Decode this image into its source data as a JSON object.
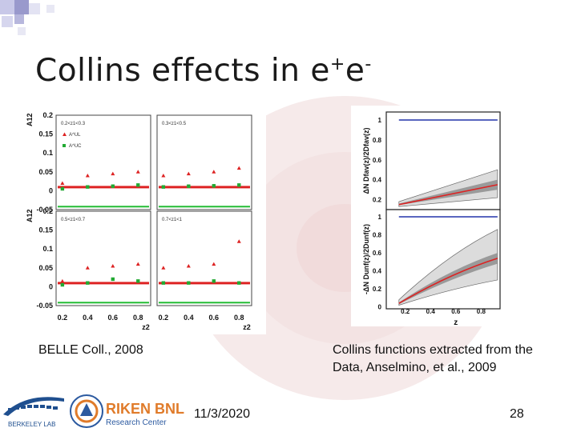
{
  "slide": {
    "title": "Collins effects in e",
    "title_sup1": "+",
    "title_e2": "e",
    "title_sup2": "-",
    "caption_left": "BELLE Coll., 2008",
    "caption_right_line1": "Collins functions extracted from the",
    "caption_right_line2": "Data, Anselmino, et al., 2009",
    "date": "11/3/2020",
    "page": "28",
    "logo_left_text": "BERKELEY LAB",
    "logo_right_text1": "RIKEN BNL",
    "logo_right_text2": "Research Center"
  },
  "chart_data": [
    {
      "type": "scatter",
      "source": "BELLE",
      "ylabel": "A12",
      "xlabel": "z2",
      "ylim": [
        -0.05,
        0.2
      ],
      "y_ticks": [
        "0.2",
        "0.15",
        "0.1",
        "0.05",
        "0",
        "-0.05"
      ],
      "x_ticks": [
        "0.2",
        "0.4",
        "0.6",
        "0.8"
      ],
      "legend": [
        "A^UL",
        "A^UC"
      ],
      "panels": [
        {
          "label": "0.2<z1<0.3",
          "series": [
            {
              "name": "A^UL",
              "x": [
                0.2,
                0.4,
                0.6,
                0.8
              ],
              "y": [
                0.02,
                0.04,
                0.045,
                0.05
              ]
            },
            {
              "name": "A^UC",
              "x": [
                0.2,
                0.4,
                0.6,
                0.8
              ],
              "y": [
                0.005,
                0.01,
                0.012,
                0.015
              ]
            }
          ]
        },
        {
          "label": "0.3<z1<0.5",
          "series": [
            {
              "name": "A^UL",
              "x": [
                0.2,
                0.4,
                0.6,
                0.8
              ],
              "y": [
                0.04,
                0.045,
                0.05,
                0.06
              ]
            },
            {
              "name": "A^UC",
              "x": [
                0.2,
                0.4,
                0.6,
                0.8
              ],
              "y": [
                0.01,
                0.012,
                0.013,
                0.015
              ]
            }
          ]
        },
        {
          "label": "0.5<z1<0.7",
          "series": [
            {
              "name": "A^UL",
              "x": [
                0.2,
                0.4,
                0.6,
                0.8
              ],
              "y": [
                0.015,
                0.05,
                0.055,
                0.06
              ]
            },
            {
              "name": "A^UC",
              "x": [
                0.2,
                0.4,
                0.6,
                0.8
              ],
              "y": [
                0.005,
                0.01,
                0.02,
                0.015
              ]
            }
          ]
        },
        {
          "label": "0.7<z1<1",
          "series": [
            {
              "name": "A^UL",
              "x": [
                0.2,
                0.4,
                0.6,
                0.8
              ],
              "y": [
                0.05,
                0.055,
                0.06,
                0.12
              ]
            },
            {
              "name": "A^UC",
              "x": [
                0.2,
                0.4,
                0.6,
                0.8
              ],
              "y": [
                0.01,
                0.01,
                0.015,
                0.01
              ]
            }
          ]
        }
      ]
    },
    {
      "type": "line",
      "source": "Anselmino et al.",
      "panels": [
        {
          "ylabel": "ΔN Dfav(z)/2Dfav(z)",
          "y_ticks": [
            "1",
            "0.8",
            "0.6",
            "0.4",
            "0.2"
          ],
          "positivity_bound": 1
        },
        {
          "ylabel": "-ΔN Dunf(z)/2Dunf(z)",
          "y_ticks": [
            "1",
            "0.8",
            "0.6",
            "0.4",
            "0.2",
            "0"
          ],
          "positivity_bound": 1
        }
      ],
      "x_ticks": [
        "0.2",
        "0.4",
        "0.6",
        "0.8"
      ],
      "xlabel": "z"
    }
  ]
}
